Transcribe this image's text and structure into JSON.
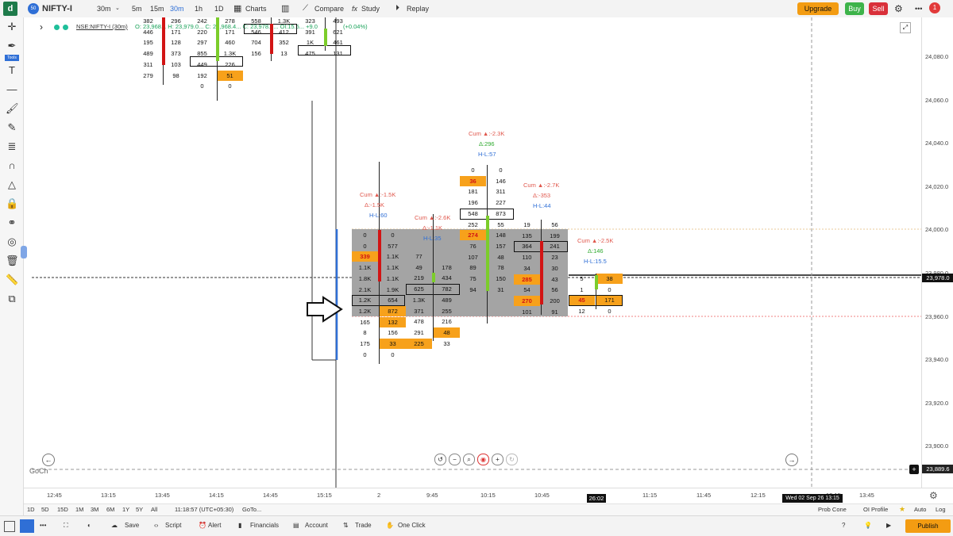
{
  "topbar": {
    "logo": "d",
    "symbol": "NIFTY-I",
    "intervals": [
      "30m",
      "5m",
      "15m",
      "30m",
      "1h",
      "1D"
    ],
    "charts_label": "Charts",
    "compare_label": "Compare",
    "study_label": "Study",
    "replay_label": "Replay",
    "upgrade_label": "Upgrade",
    "buy_label": "Buy",
    "sell_label": "Sell",
    "notification_count": "1"
  },
  "lefttoolbar": {
    "tools_label": "Tools"
  },
  "legend": {
    "symbol_text": "NSE:NIFTY-I (30m)",
    "ohlc_text": "O: 23,968... H: 23,979.0... C: 23,968.4... C: 23,978.0... Ol:15.5... +9.0",
    "change_text": "(+0.04%)"
  },
  "price_axis": {
    "labels": [
      "24,080.0",
      "24,060.0",
      "24,040.0",
      "24,020.0",
      "24,000.0",
      "23,980.0",
      "23,960.0",
      "23,940.0",
      "23,920.0",
      "23,900.0"
    ],
    "current_price": "23,978.0",
    "cursor_price": "23,889.6"
  },
  "time_axis": {
    "labels": [
      "12:45",
      "13:15",
      "13:45",
      "14:15",
      "14:45",
      "15:15",
      "2",
      "9:45",
      "10:15",
      "10:45",
      "11:15",
      "11:45",
      "12:15",
      "12:45",
      "13:15",
      "13:45"
    ],
    "countdown": "26:02",
    "cursor_time": "Wed 02 Sep 26 13:15"
  },
  "rangebar": {
    "ranges": [
      "1D",
      "5D",
      "15D",
      "1M",
      "3M",
      "6M",
      "1Y",
      "5Y",
      "All"
    ],
    "time": "11:18:57 (UTC+05:30)",
    "goto": "GoTo...",
    "prob_cone": "Prob Cone",
    "oi_profile": "OI Profile",
    "auto": "Auto",
    "log": "Log"
  },
  "bottombar": {
    "save": "Save",
    "script": "Script",
    "alert": "Alert",
    "financials": "Financials",
    "account": "Account",
    "trade": "Trade",
    "one_click": "One Click",
    "publish": "Publish"
  },
  "watermark": "GoCh",
  "annotations": {
    "c1_cum": "Cum ▲:-1.5K",
    "c1_delta": "Δ:-1.5K",
    "c1_hl": "H-L:60",
    "c2_cum": "Cum ▲:-2.6K",
    "c2_delta": "Δ:-1.1K",
    "c2_hl": "H-L:35",
    "c3_cum": "Cum ▲:-2.3K",
    "c3_delta": "Δ:296",
    "c3_hl": "H-L:57",
    "c4_cum": "Cum ▲:-2.7K",
    "c4_delta": "Δ:-353",
    "c4_hl": "H-L:44",
    "c5_cum": "Cum ▲:-2.5K",
    "c5_delta": "Δ:146",
    "c5_hl": "H-L:15.5"
  },
  "footprint_top": {
    "c1": [
      [
        "382",
        "296"
      ],
      [
        "446",
        "171"
      ],
      [
        "195",
        "128"
      ],
      [
        "489",
        "373"
      ],
      [
        "311",
        "103"
      ],
      [
        "279",
        "98"
      ]
    ],
    "c2": [
      [
        "242",
        "278"
      ],
      [
        "220",
        "171"
      ],
      [
        "297",
        "460"
      ],
      [
        "855",
        "1.3K"
      ],
      [
        "449",
        "226"
      ],
      [
        "192",
        "51"
      ],
      [
        "0",
        "0"
      ]
    ],
    "c3": [
      [
        "558",
        "1.3K"
      ],
      [
        "546",
        "412"
      ],
      [
        "704",
        "352"
      ],
      [
        "156",
        "13"
      ]
    ],
    "c4": [
      [
        "323",
        "493"
      ],
      [
        "391",
        "621"
      ],
      [
        "1K",
        "461"
      ],
      [
        "475",
        "131"
      ]
    ]
  },
  "footprint": {
    "c1": [
      [
        "0",
        "0"
      ],
      [
        "0",
        "577"
      ],
      [
        "339",
        "1.1K"
      ],
      [
        "1.1K",
        "1.1K"
      ],
      [
        "1.8K",
        "1.1K"
      ],
      [
        "2.1K",
        "1.9K"
      ],
      [
        "1.2K",
        "654"
      ],
      [
        "1.2K",
        "872"
      ],
      [
        "165",
        "132"
      ],
      [
        "8",
        "156"
      ],
      [
        "175",
        "33"
      ],
      [
        "0",
        "0"
      ]
    ],
    "c2": [
      [
        "77",
        ""
      ],
      [
        "49",
        "178"
      ],
      [
        "219",
        "434"
      ],
      [
        "625",
        "782"
      ],
      [
        "1.3K",
        "489"
      ],
      [
        "371",
        "255"
      ],
      [
        "478",
        "216"
      ],
      [
        "291",
        "48"
      ],
      [
        "225",
        "33"
      ]
    ],
    "c3": [
      [
        "0",
        "0"
      ],
      [
        "36",
        "146"
      ],
      [
        "181",
        "311"
      ],
      [
        "196",
        "227"
      ],
      [
        "548",
        "873"
      ],
      [
        "252",
        "55"
      ],
      [
        "274",
        "148"
      ],
      [
        "76",
        "157"
      ],
      [
        "107",
        "48"
      ],
      [
        "89",
        "78"
      ],
      [
        "75",
        "150"
      ],
      [
        "94",
        "31"
      ]
    ],
    "c4": [
      [
        "19",
        "56"
      ],
      [
        "135",
        "199"
      ],
      [
        "364",
        "241"
      ],
      [
        "110",
        "23"
      ],
      [
        "34",
        "30"
      ],
      [
        "285",
        "43"
      ],
      [
        "54",
        "56"
      ],
      [
        "270",
        "200"
      ],
      [
        "101",
        "91"
      ]
    ],
    "c5": [
      [
        "5",
        "38"
      ],
      [
        "1",
        "0"
      ],
      [
        "45",
        "171"
      ],
      [
        "12",
        "0"
      ]
    ]
  }
}
